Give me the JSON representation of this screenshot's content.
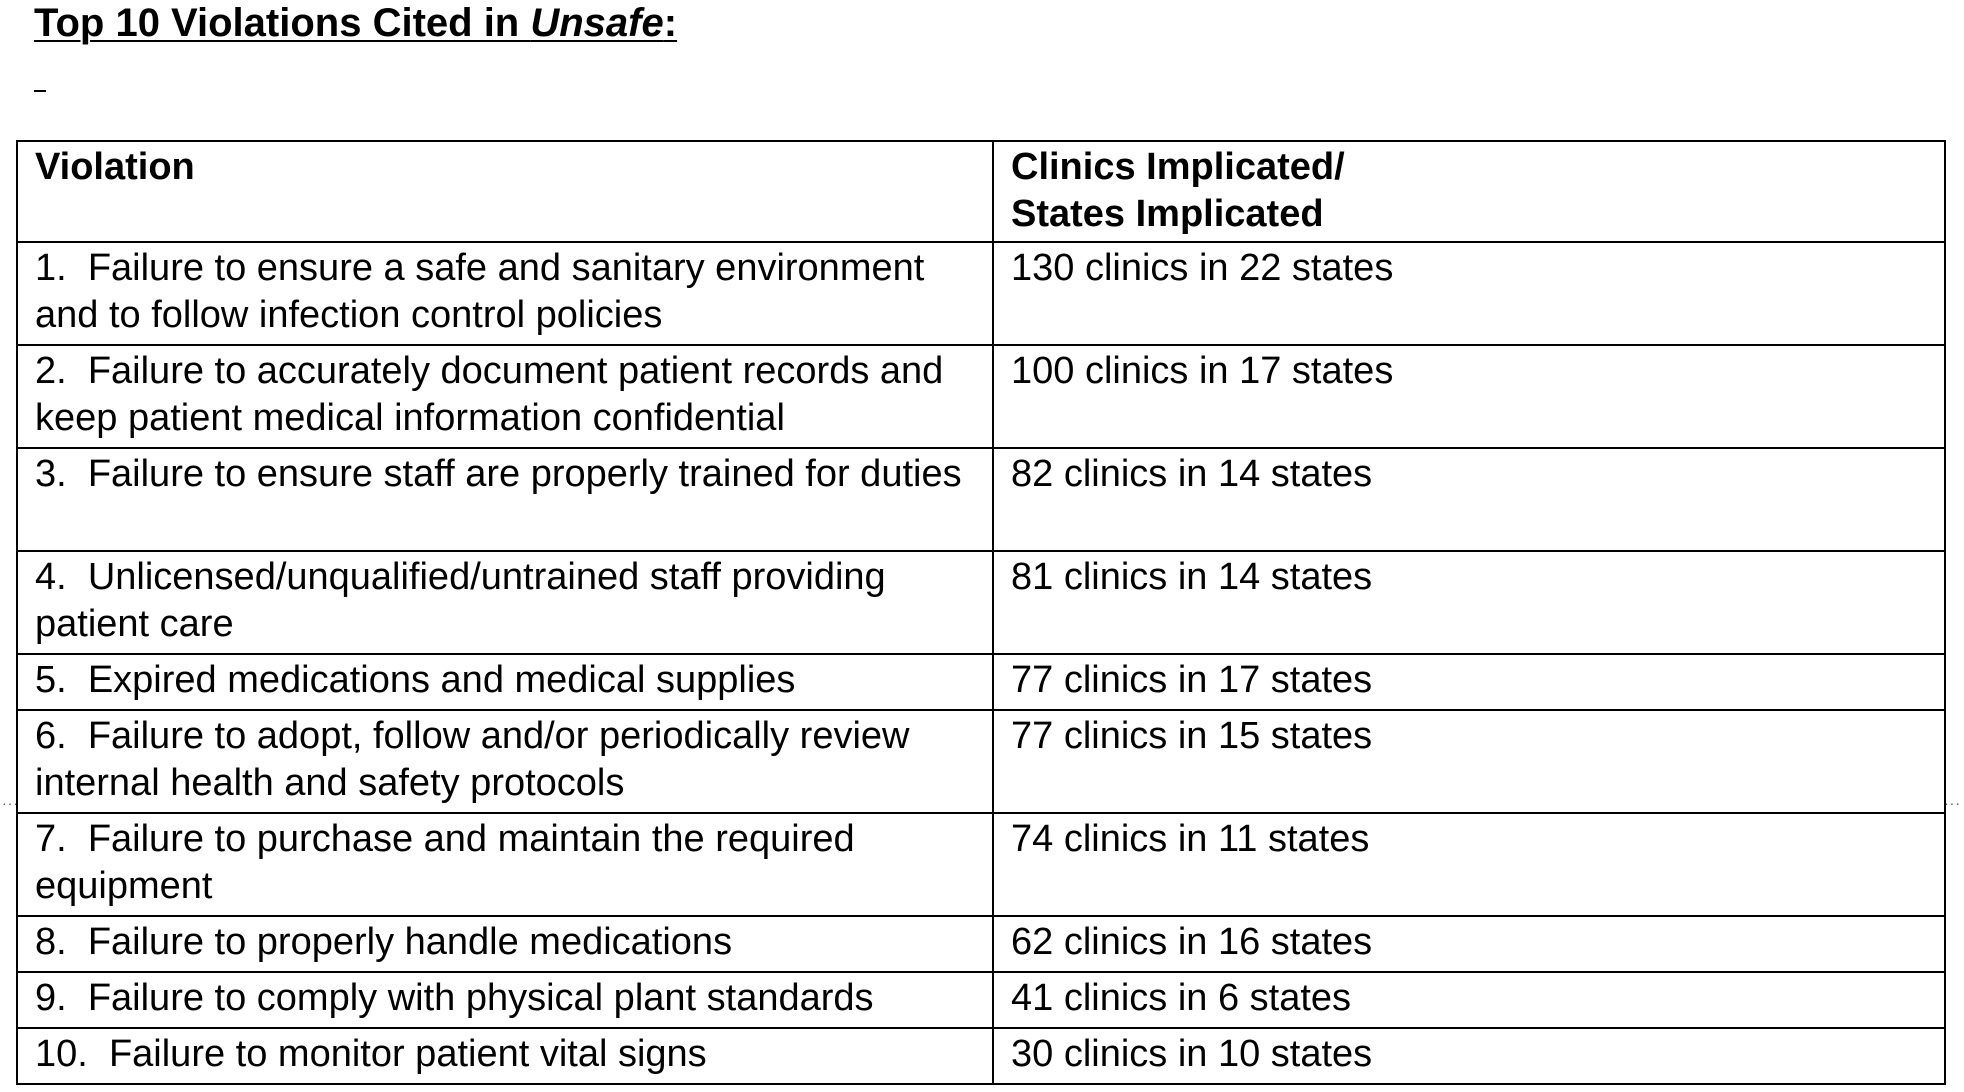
{
  "title": {
    "prefix": "Top 10 Violations Cited in ",
    "emphasis": "Unsafe",
    "suffix": ":"
  },
  "table": {
    "headers": {
      "violation": "Violation",
      "implicated_line1": "Clinics Implicated/",
      "implicated_line2": "States Implicated"
    },
    "rows": [
      {
        "number": "1.",
        "violation": "Failure to ensure a safe and sanitary environment and to follow infection control policies",
        "implicated": "130 clinics in 22 states"
      },
      {
        "number": "2.",
        "violation": "Failure to accurately document patient records and keep patient medical information confidential",
        "implicated": "100 clinics in 17 states"
      },
      {
        "number": "3.",
        "violation": "Failure to ensure staff are properly trained for duties",
        "implicated": "82 clinics in 14 states"
      },
      {
        "number": "4.",
        "violation": "Unlicensed/unqualified/untrained staff providing patient care",
        "implicated": "81 clinics in 14 states"
      },
      {
        "number": "5.",
        "violation": "Expired medications and medical supplies",
        "implicated": "77 clinics in 17 states"
      },
      {
        "number": "6.",
        "violation": "Failure to adopt, follow and/or periodically review internal health and safety protocols",
        "implicated": "77 clinics in 15 states"
      },
      {
        "number": "7.",
        "violation": "Failure to purchase and maintain the required equipment",
        "implicated": "74 clinics in 11 states"
      },
      {
        "number": "8.",
        "violation": "Failure to properly handle medications",
        "implicated": "62 clinics in 16 states"
      },
      {
        "number": "9.",
        "violation": "Failure to comply with physical plant standards",
        "implicated": "41 clinics in 6 states"
      },
      {
        "number": "10.",
        "violation": "Failure to monitor patient vital signs",
        "implicated": "30 clinics in 10 states"
      }
    ]
  }
}
